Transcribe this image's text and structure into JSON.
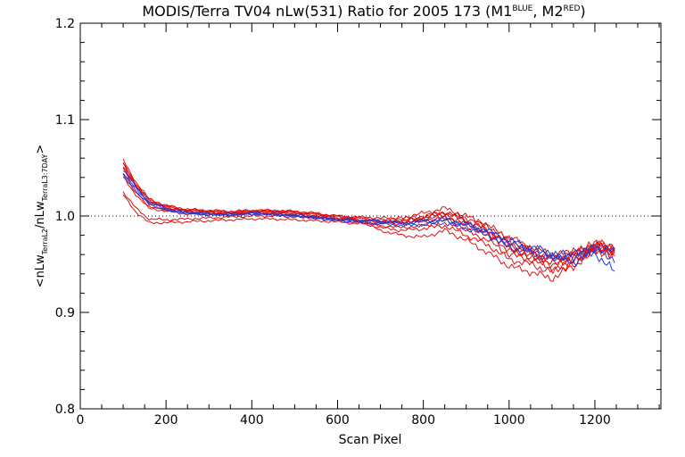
{
  "chart_data": {
    "type": "line",
    "title": {
      "main": "MODIS/Terra TV04 nLw(531) Ratio for 2005 173 (M1",
      "sup1": "BLUE",
      "mid": ", M2",
      "sup2": "RED",
      "end": ")"
    },
    "xlabel": "Scan Pixel",
    "ylabel": {
      "open": "<nLw",
      "sub1": "TerraL2",
      "slash": "/nLw",
      "sub2": "TerraL3:7DAY",
      "close": ">"
    },
    "xlim": [
      0,
      1354
    ],
    "ylim": [
      0.8,
      1.2
    ],
    "xticks": [
      0,
      200,
      400,
      600,
      800,
      1000,
      1200
    ],
    "xtick_labels": [
      "0",
      "200",
      "400",
      "600",
      "800",
      "1000",
      "1200"
    ],
    "yticks": [
      0.8,
      0.9,
      1.0,
      1.1,
      1.2
    ],
    "ytick_labels": [
      "0.8",
      "0.9",
      "1.0",
      "1.1",
      "1.2"
    ],
    "reference_line": 1.0,
    "colors": {
      "M1": "#1e3cdc",
      "M2": "#e01010"
    },
    "anchor_x": [
      100,
      130,
      160,
      200,
      250,
      300,
      350,
      400,
      450,
      500,
      550,
      600,
      650,
      700,
      750,
      800,
      850,
      900,
      950,
      1000,
      1050,
      1100,
      1150,
      1200,
      1250
    ],
    "series": [
      {
        "group": "M1",
        "values": [
          1.048,
          1.03,
          1.015,
          1.008,
          1.004,
          1.002,
          1.002,
          1.003,
          1.002,
          1.001,
          0.999,
          0.996,
          0.995,
          0.994,
          0.992,
          0.994,
          0.995,
          0.99,
          0.985,
          0.975,
          0.968,
          0.962,
          0.958,
          0.968,
          0.962
        ]
      },
      {
        "group": "M1",
        "values": [
          1.042,
          1.025,
          1.012,
          1.006,
          1.003,
          1.001,
          1.001,
          1.002,
          1.001,
          1.0,
          0.998,
          0.995,
          0.994,
          0.992,
          0.99,
          0.991,
          0.993,
          0.987,
          0.98,
          0.968,
          0.962,
          0.956,
          0.96,
          0.965,
          0.955
        ]
      },
      {
        "group": "M1",
        "values": [
          1.045,
          1.028,
          1.014,
          1.007,
          1.003,
          1.002,
          1.001,
          1.003,
          1.002,
          1.0,
          0.998,
          0.997,
          0.996,
          0.995,
          0.993,
          0.995,
          0.997,
          0.992,
          0.983,
          0.972,
          0.965,
          0.958,
          0.952,
          0.962,
          0.94
        ]
      },
      {
        "group": "M2",
        "values": [
          1.055,
          1.032,
          1.016,
          1.01,
          1.006,
          1.005,
          1.004,
          1.005,
          1.005,
          1.004,
          1.002,
          0.999,
          0.998,
          0.996,
          0.995,
          0.998,
          1.002,
          0.995,
          0.985,
          0.97,
          0.962,
          0.955,
          0.96,
          0.97,
          0.965
        ]
      },
      {
        "group": "M2",
        "values": [
          1.05,
          1.03,
          1.014,
          1.008,
          1.005,
          1.004,
          1.003,
          1.004,
          1.004,
          1.002,
          1.0,
          0.998,
          0.996,
          0.994,
          0.993,
          0.996,
          0.998,
          0.992,
          0.98,
          0.965,
          0.958,
          0.95,
          0.955,
          0.968,
          0.963
        ]
      },
      {
        "group": "M2",
        "values": [
          1.058,
          1.035,
          1.018,
          1.011,
          1.007,
          1.006,
          1.005,
          1.006,
          1.006,
          1.005,
          1.003,
          1.0,
          0.999,
          0.998,
          0.997,
          1.0,
          1.004,
          0.998,
          0.99,
          0.975,
          0.965,
          0.958,
          0.962,
          0.972,
          0.968
        ]
      },
      {
        "group": "M2",
        "values": [
          1.045,
          1.025,
          1.01,
          1.006,
          1.003,
          1.003,
          1.002,
          1.003,
          1.003,
          1.001,
          0.999,
          0.996,
          0.994,
          0.99,
          0.988,
          0.99,
          0.995,
          0.985,
          0.975,
          0.96,
          0.955,
          0.945,
          0.95,
          0.966,
          0.962
        ]
      },
      {
        "group": "M2",
        "values": [
          1.04,
          1.022,
          1.008,
          1.005,
          1.002,
          1.002,
          1.001,
          1.002,
          1.002,
          1.0,
          0.998,
          0.995,
          0.993,
          0.988,
          0.985,
          0.987,
          0.99,
          0.98,
          0.97,
          0.955,
          0.95,
          0.942,
          0.952,
          0.965,
          0.96
        ]
      },
      {
        "group": "M2",
        "values": [
          1.025,
          1.008,
          0.997,
          0.996,
          0.997,
          0.998,
          0.999,
          1.0,
          1.0,
          0.999,
          0.998,
          0.997,
          0.995,
          0.995,
          0.998,
          1.003,
          1.008,
          1.0,
          0.99,
          0.978,
          0.968,
          0.96,
          0.962,
          0.97,
          0.966
        ]
      },
      {
        "group": "M2",
        "values": [
          1.022,
          1.004,
          0.993,
          0.993,
          0.994,
          0.995,
          0.996,
          0.997,
          0.997,
          0.996,
          0.995,
          0.994,
          0.992,
          0.992,
          0.994,
          0.999,
          1.004,
          0.995,
          0.985,
          0.972,
          0.962,
          0.955,
          0.958,
          0.968,
          0.964
        ]
      },
      {
        "group": "M2",
        "values": [
          1.052,
          1.03,
          1.015,
          1.009,
          1.005,
          1.004,
          1.003,
          1.005,
          1.005,
          1.003,
          1.001,
          0.998,
          0.995,
          0.985,
          0.98,
          0.978,
          0.985,
          0.975,
          0.962,
          0.948,
          0.942,
          0.935,
          0.948,
          0.964,
          0.96
        ]
      },
      {
        "group": "M2",
        "values": [
          1.054,
          1.033,
          1.017,
          1.01,
          1.006,
          1.005,
          1.004,
          1.005,
          1.005,
          1.004,
          1.002,
          1.0,
          0.998,
          0.993,
          0.992,
          0.996,
          1.0,
          0.99,
          0.982,
          0.966,
          0.958,
          0.95,
          0.956,
          0.969,
          0.966
        ]
      }
    ]
  }
}
